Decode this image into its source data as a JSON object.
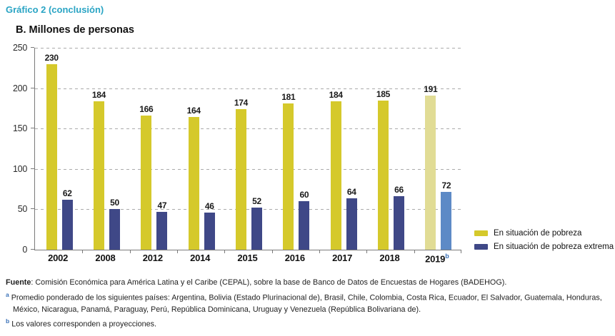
{
  "header": {
    "kicker": "Gráfico 2 (conclusión)"
  },
  "chart_data": {
    "type": "bar",
    "title": "B. Millones de personas",
    "xlabel": "",
    "ylabel": "",
    "categories": [
      "2002",
      "2008",
      "2012",
      "2014",
      "2015",
      "2016",
      "2017",
      "2018",
      "2019"
    ],
    "category_superscript": {
      "index": 8,
      "marker": "b"
    },
    "series": [
      {
        "name": "En situación de pobreza",
        "values": [
          230,
          184,
          166,
          164,
          174,
          181,
          184,
          185,
          191
        ],
        "color": "#d5c92b",
        "projected_color": "#e1dc95"
      },
      {
        "name": "En situación de pobreza extrema",
        "values": [
          62,
          50,
          47,
          46,
          52,
          60,
          64,
          66,
          72
        ],
        "color": "#3f4887",
        "projected_color": "#5d8ac6"
      }
    ],
    "projected_category_index": 8,
    "ylim": [
      0,
      250
    ],
    "yticks": [
      0,
      50,
      100,
      150,
      200,
      250
    ],
    "grid": "horizontal-dashed",
    "legend_position": "right-bottom"
  },
  "footnotes": {
    "source": {
      "label": "Fuente",
      "text": ": Comisión Económica para América Latina y el Caribe (CEPAL), sobre la base de Banco de Datos de Encuestas de Hogares (BADEHOG)."
    },
    "a": {
      "marker": "a",
      "text": "Promedio ponderado de los siguientes países: Argentina, Bolivia (Estado Plurinacional de), Brasil, Chile, Colombia, Costa Rica, Ecuador, El Salvador, Guatemala, Honduras, México, Nicaragua, Panamá, Paraguay, Perú, República Dominicana, Uruguay y Venezuela (República Bolivariana de)."
    },
    "b": {
      "marker": "b",
      "text": "Los valores corresponden a proyecciones."
    }
  },
  "colors": {
    "kicker_teal": "#29a4c4",
    "axis_gray": "#7a7a7a",
    "gridline_gray": "#ababab",
    "footnote_marker_blue": "#3b72b8"
  }
}
